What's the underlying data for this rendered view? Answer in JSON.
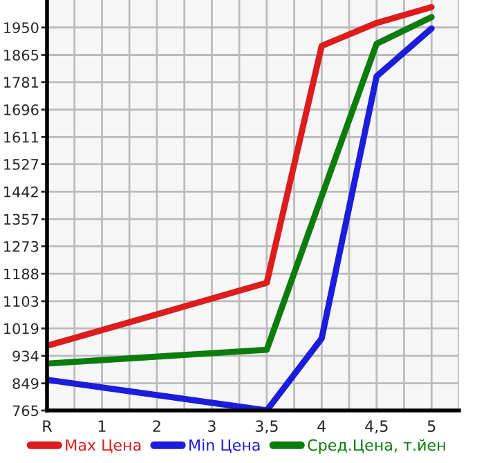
{
  "chart_data": {
    "type": "line",
    "categories": [
      "R",
      "1",
      "2",
      "3",
      "3,5",
      "4",
      "4,5",
      "5"
    ],
    "series": [
      {
        "name": "Max Цена",
        "color": "#dd1c1c",
        "values": [
          965,
          null,
          null,
          null,
          1160,
          1893,
          1964,
          2013
        ]
      },
      {
        "name": "Min Цена",
        "color": "#1c1cdd",
        "values": [
          860,
          null,
          null,
          null,
          765,
          988,
          1799,
          1947
        ]
      },
      {
        "name": "Сред.Цена, т.йен",
        "color": "#0c7c0c",
        "values": [
          910,
          null,
          null,
          null,
          953,
          1428,
          1900,
          1982
        ]
      }
    ],
    "ylim": [
      765,
      2035
    ],
    "yticks": [
      765,
      849,
      934,
      1019,
      1103,
      1188,
      1273,
      1357,
      1442,
      1527,
      1611,
      1696,
      1781,
      1865,
      1950
    ],
    "grid": true,
    "legend": "bottom",
    "marker": "none",
    "line_style": "solid"
  }
}
